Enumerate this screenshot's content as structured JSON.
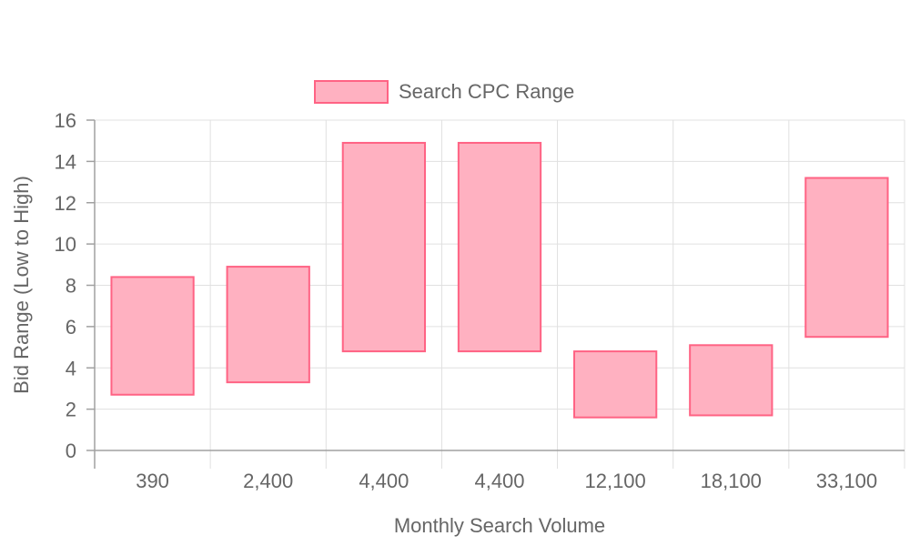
{
  "chart_data": {
    "type": "bar",
    "title": "",
    "xlabel": "Monthly Search Volume",
    "ylabel": "Bid Range (Low to High)",
    "categories": [
      "390",
      "2,400",
      "4,400",
      "4,400",
      "12,100",
      "18,100",
      "33,100"
    ],
    "series": [
      {
        "name": "Search CPC Range",
        "ranges": [
          [
            2.7,
            8.4
          ],
          [
            3.3,
            8.9
          ],
          [
            4.8,
            14.9
          ],
          [
            4.8,
            14.9
          ],
          [
            1.6,
            4.8
          ],
          [
            1.7,
            5.1
          ],
          [
            5.5,
            13.2
          ]
        ]
      }
    ],
    "ylim": [
      0,
      16
    ],
    "yticks": [
      "0",
      "2",
      "4",
      "6",
      "8",
      "10",
      "12",
      "14",
      "16"
    ],
    "grid": true,
    "legend_position": "top",
    "colors": {
      "fill": "#ffb1c1",
      "stroke": "#ff6384"
    }
  }
}
